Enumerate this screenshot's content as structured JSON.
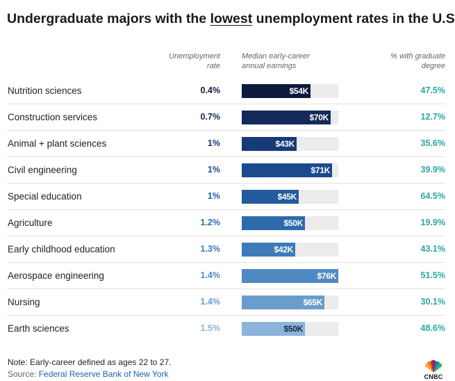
{
  "title_before": "Undergraduate majors with the ",
  "title_underlined": "lowest",
  "title_after": " unemployment rates in the U.S.",
  "headers": {
    "unemployment_line1": "Unemployment",
    "unemployment_line2": "rate",
    "earnings_line1": "Median early-career",
    "earnings_line2": "annual earnings",
    "grad_line1": "% with graduate",
    "grad_line2": "degree"
  },
  "chart_data": {
    "type": "table",
    "columns": [
      "Unemployment rate",
      "Median early-career annual earnings",
      "% with graduate degree"
    ],
    "earnings_scale_max": 76000,
    "rows": [
      {
        "major": "Nutrition sciences",
        "unemployment": "0.4%",
        "earnings": 54000,
        "earnings_label": "$54K",
        "grad": "47.5%",
        "color": "#0d1a3d"
      },
      {
        "major": "Construction services",
        "unemployment": "0.7%",
        "earnings": 70000,
        "earnings_label": "$70K",
        "grad": "12.7%",
        "color": "#12295a"
      },
      {
        "major": "Animal + plant sciences",
        "unemployment": "1%",
        "earnings": 43000,
        "earnings_label": "$43K",
        "grad": "35.6%",
        "color": "#173a78"
      },
      {
        "major": "Civil engineering",
        "unemployment": "1%",
        "earnings": 71000,
        "earnings_label": "$71K",
        "grad": "39.9%",
        "color": "#1c4a8d"
      },
      {
        "major": "Special education",
        "unemployment": "1%",
        "earnings": 45000,
        "earnings_label": "$45K",
        "grad": "64.5%",
        "color": "#225b9e"
      },
      {
        "major": "Agriculture",
        "unemployment": "1.2%",
        "earnings": 50000,
        "earnings_label": "$50K",
        "grad": "19.9%",
        "color": "#2d6bac"
      },
      {
        "major": "Early childhood education",
        "unemployment": "1.3%",
        "earnings": 42000,
        "earnings_label": "$42K",
        "grad": "43.1%",
        "color": "#3c7bb8"
      },
      {
        "major": "Aerospace engineering",
        "unemployment": "1.4%",
        "earnings": 76000,
        "earnings_label": "$76K",
        "grad": "51.5%",
        "color": "#5089c2"
      },
      {
        "major": "Nursing",
        "unemployment": "1.4%",
        "earnings": 65000,
        "earnings_label": "$65K",
        "grad": "30.1%",
        "color": "#6a9dcc"
      },
      {
        "major": "Earth sciences",
        "unemployment": "1.5%",
        "earnings": 50000,
        "earnings_label": "$50K",
        "grad": "48.6%",
        "color": "#8ab4d9"
      }
    ]
  },
  "colors": {
    "grad_text": "#2ba6a6",
    "track": "#ececec",
    "link": "#1f5fa8"
  },
  "note": "Note: Early-career defined as ages 22 to 27.",
  "source_prefix": "Source: ",
  "source_link": "Federal Reserve Bank of New York",
  "logo_text": "CNBC"
}
